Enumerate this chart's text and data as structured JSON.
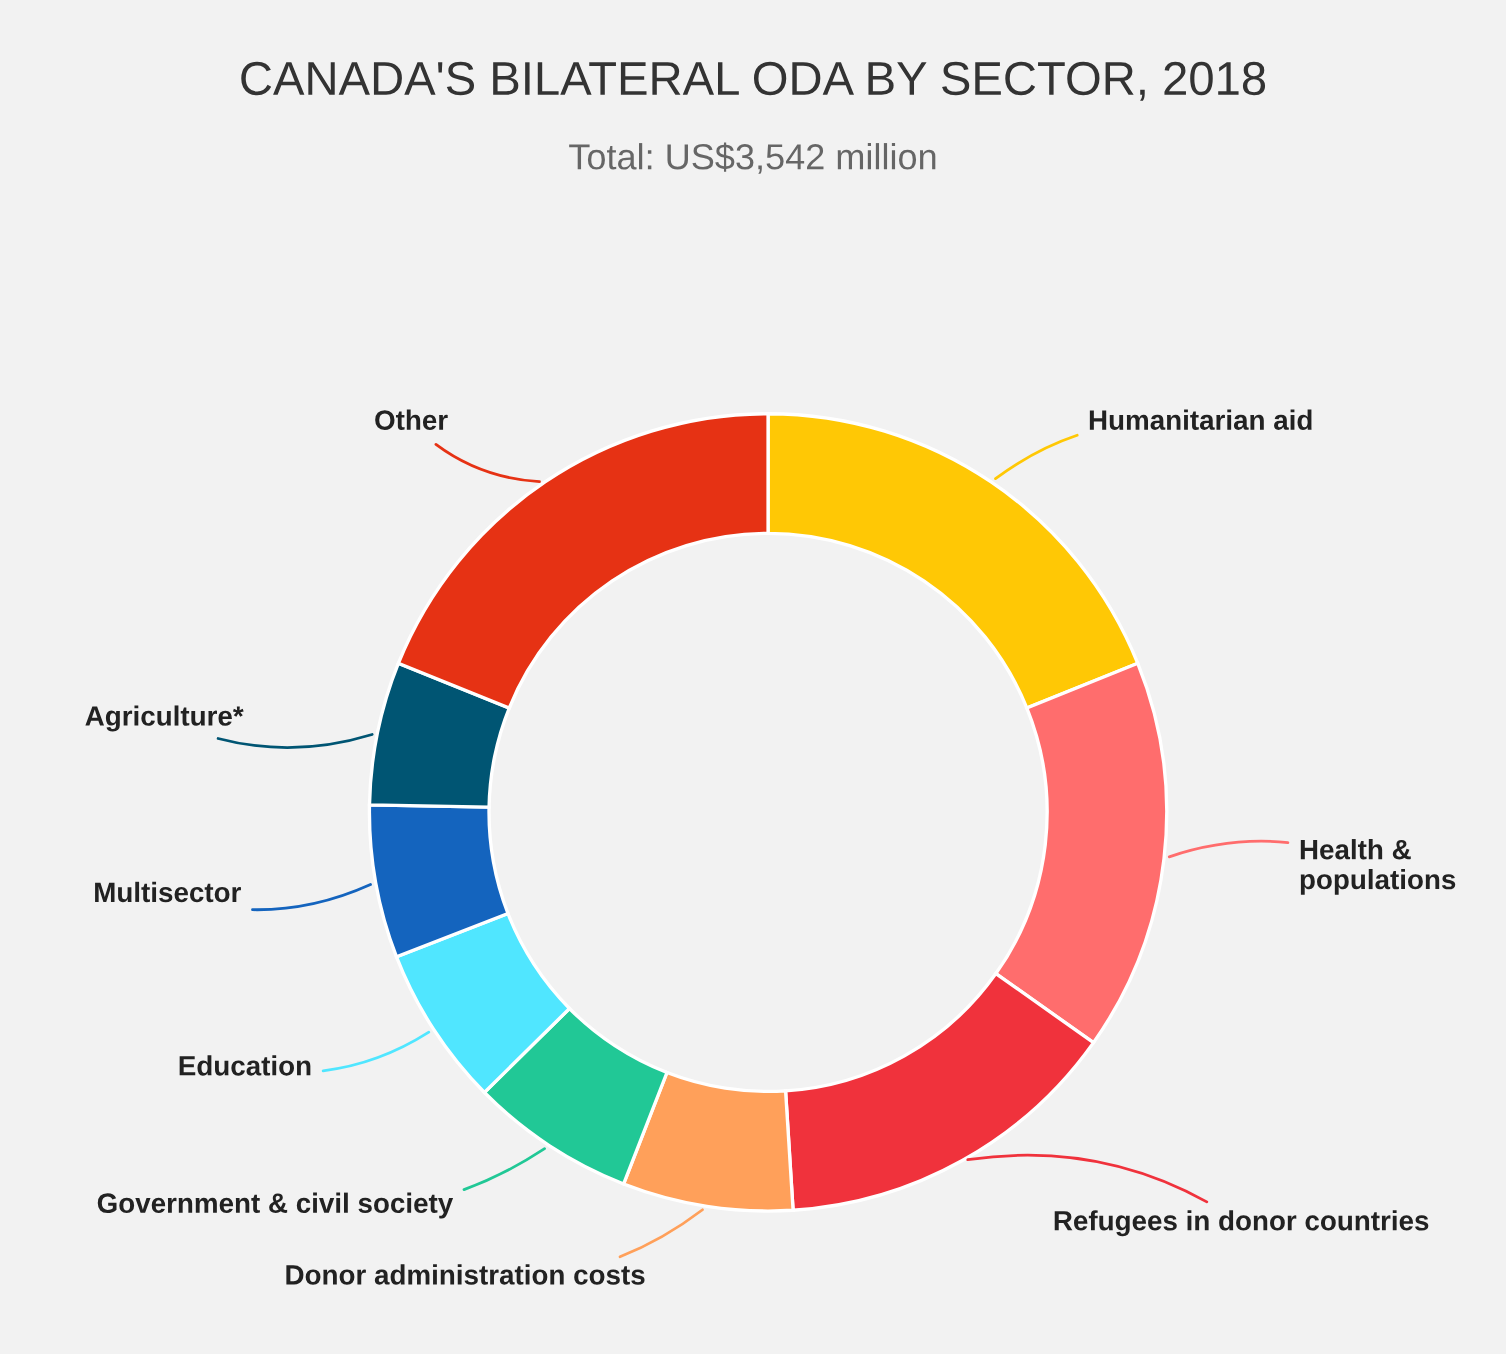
{
  "chart_data": {
    "type": "donut",
    "title": "CANADA'S BILATERAL ODA BY SECTOR, 2018",
    "subtitle": "Total: US$3,542 million",
    "categories": [
      "Humanitarian aid",
      "Health &\npopulations",
      "Refugees in donor countries",
      "Donor administration costs",
      "Government & civil society",
      "Education",
      "Multisector",
      "Agriculture*",
      "Other"
    ],
    "values": [
      18.9,
      15.9,
      14.2,
      6.9,
      6.7,
      6.5,
      6.2,
      5.8,
      18.9
    ],
    "colors": [
      "#ffc805",
      "#ff6d6d",
      "#f0323c",
      "#ffa05a",
      "#21c896",
      "#50e6ff",
      "#1464be",
      "#005573",
      "#e63214"
    ],
    "legend": false
  }
}
